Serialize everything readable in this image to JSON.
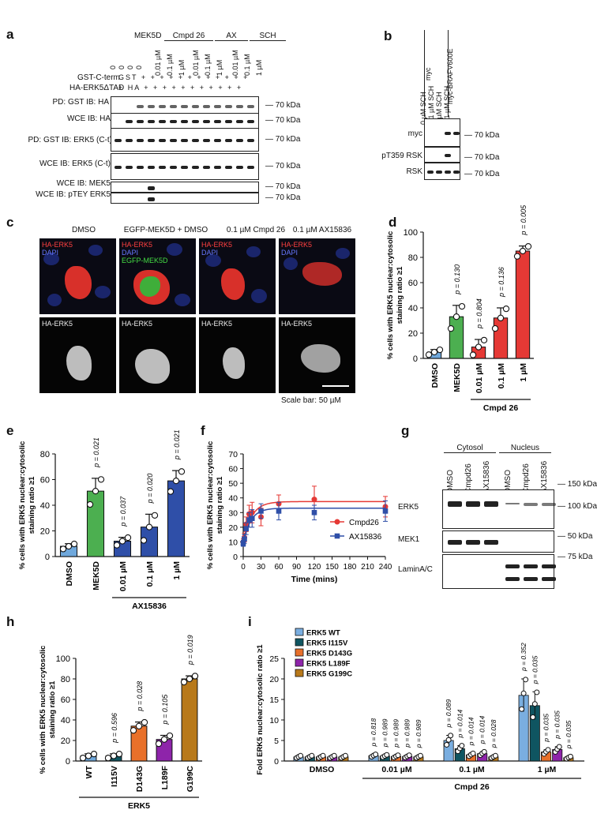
{
  "panel_labels": {
    "a": "a",
    "b": "b",
    "c": "c",
    "d": "d",
    "e": "e",
    "f": "f",
    "g": "g",
    "h": "h",
    "i": "i"
  },
  "panel_a": {
    "header_groups": [
      "MEK5D",
      "Cmpd 26",
      "AX",
      "SCH"
    ],
    "conc_labels": [
      "0",
      "0",
      "0",
      "0",
      "0.01 µM",
      "0.1 µM",
      "1 µM",
      "0.01 µM",
      "0.1 µM",
      "1 µM",
      "0.01 µM",
      "0.1 µM",
      "1 µM"
    ],
    "row_gst": "GST-C-term",
    "row_gst_vals": "GST + + + + + + + + + + + +",
    "row_ha": "HA-ERK5ΔTAD",
    "row_ha_vals": "+ HA + + + + + + + + + + +",
    "blots": [
      "PD: GST IB: HA",
      "WCE IB: HA",
      "PD: GST IB: ERK5 (C-t)",
      "WCE IB: ERK5 (C-t)",
      "WCE IB: MEK5",
      "WCE IB: pTEY ERK5"
    ],
    "kda": [
      "70 kDa",
      "70 kDa",
      "70 kDa",
      "70 kDa",
      "70 kDa",
      "70 kDa"
    ]
  },
  "panel_b": {
    "groups": [
      "myc",
      "myc-BRAFV600E"
    ],
    "conc": [
      "0 µM SCH",
      "0.1 µM SCH",
      "0 µM SCH",
      "0.1 µM SCH"
    ],
    "blots": [
      "myc",
      "pT359 RSK",
      "RSK"
    ],
    "kda": [
      "70 kDa",
      "70 kDa",
      "70 kDa"
    ]
  },
  "panel_c": {
    "columns": [
      "DMSO",
      "EGFP-MEK5D + DMSO",
      "0.1 µM Cmpd 26",
      "0.1 µM AX15836"
    ],
    "top_labels": [
      [
        "HA-ERK5",
        "DAPI"
      ],
      [
        "HA-ERK5",
        "DAPI",
        "EGFP-MEK5D"
      ],
      [
        "HA-ERK5",
        "DAPI"
      ],
      [
        "HA-ERK5",
        "DAPI"
      ]
    ],
    "bottom_label": "HA-ERK5",
    "scale_bar": "Scale bar: 50 µM"
  },
  "colors": {
    "dmso_blue": "#6fa8dc",
    "mek5d_green": "#4caf50",
    "cmpd_red": "#e53935",
    "ax_blue": "#2f4fa8",
    "orange": "#e8702a",
    "purple": "#8e24aa",
    "gold": "#b8791a",
    "teal": "#0f5561",
    "lightblue": "#7aaee0"
  },
  "chart_data": [
    {
      "id": "d",
      "type": "bar",
      "ylabel": "% cells with ERK5 nuclear:cytosolic staining ratio ≥1",
      "ylim": [
        0,
        100
      ],
      "yticks": [
        "0",
        "20",
        "40",
        "60",
        "80",
        "100"
      ],
      "categories": [
        "DMSO",
        "MEK5D",
        "0.01 µM",
        "0.1 µM",
        "1 µM"
      ],
      "values": [
        5,
        33,
        9,
        32,
        85
      ],
      "errors": [
        2,
        9,
        6,
        8,
        4
      ],
      "pvalues": [
        "",
        "p = 0.130",
        "p = 0.804",
        "p = 0.136",
        "p = 0.005"
      ],
      "group_label": "Cmpd 26"
    },
    {
      "id": "e",
      "type": "bar",
      "ylabel": "% cells with ERK5 nuclear:cytosolic staining ratio ≥1",
      "ylim": [
        0,
        80
      ],
      "yticks": [
        "0",
        "20",
        "40",
        "60",
        "80"
      ],
      "categories": [
        "DMSO",
        "MEK5D",
        "0.01 µM",
        "0.1 µM",
        "1 µM"
      ],
      "values": [
        8,
        51,
        12,
        23,
        59
      ],
      "errors": [
        2,
        10,
        3,
        10,
        8
      ],
      "pvalues": [
        "",
        "p = 0.021",
        "p = 0.037",
        "p = 0.020",
        "p = 0.021"
      ],
      "group_label": "AX15836"
    },
    {
      "id": "f",
      "type": "line",
      "ylabel": "% cells with ERK5 nuclear:cytosolic staining ratio ≥1",
      "xlabel": "Time (mins)",
      "xticks": [
        "0",
        "30",
        "60",
        "90",
        "120",
        "150",
        "180",
        "210",
        "240"
      ],
      "yticks": [
        "0",
        "10",
        "20",
        "30",
        "40",
        "50",
        "60",
        "70"
      ],
      "xlim": [
        0,
        240
      ],
      "ylim": [
        0,
        70
      ],
      "series": [
        {
          "name": "Cmpd26",
          "x": [
            0,
            2,
            5,
            10,
            15,
            30,
            60,
            120,
            240
          ],
          "y": [
            10,
            13,
            22,
            29,
            30,
            27,
            36,
            39,
            34
          ],
          "err": [
            2,
            3,
            5,
            6,
            7,
            6,
            6,
            9,
            7
          ]
        },
        {
          "name": "AX15836",
          "x": [
            0,
            2,
            5,
            10,
            15,
            30,
            60,
            120,
            240
          ],
          "y": [
            9,
            12,
            19,
            25,
            26,
            31,
            31,
            30,
            31
          ],
          "err": [
            2,
            3,
            4,
            5,
            6,
            5,
            6,
            5,
            7
          ]
        }
      ]
    },
    {
      "id": "h",
      "type": "bar",
      "ylabel": "% cells with ERK5 nuclear:cytosolic staining ratio ≥1",
      "ylim": [
        0,
        100
      ],
      "yticks": [
        "0",
        "20",
        "40",
        "60",
        "80",
        "100"
      ],
      "categories": [
        "WT",
        "I115V",
        "D143G",
        "L189F",
        "G199C"
      ],
      "values": [
        5,
        5,
        34,
        21,
        80
      ],
      "errors": [
        2,
        2,
        4,
        4,
        3
      ],
      "pvalues": [
        "",
        "p = 0.596",
        "p = 0.028",
        "p = 0.105",
        "p = 0.019"
      ],
      "group_label": "ERK5"
    },
    {
      "id": "i",
      "type": "bar",
      "ylabel": "Fold ERK5 nuclear:cytosolic ratio ≥1",
      "ylim": [
        0,
        25
      ],
      "yticks": [
        "0",
        "5",
        "10",
        "15",
        "20",
        "25"
      ],
      "categories": [
        "DMSO",
        "0.01 µM",
        "0.1 µM",
        "1 µM"
      ],
      "group_label": "Cmpd 26",
      "series": [
        {
          "name": "ERK5 WT",
          "values": [
            1,
            1.3,
            5,
            16
          ],
          "pvalues": [
            "",
            "p = 0.818",
            "p = 0.089",
            "p = 0.352"
          ]
        },
        {
          "name": "ERK5 I115V",
          "values": [
            1,
            1.2,
            3,
            13.5
          ],
          "pvalues": [
            "",
            "p = 0.989",
            "p = 0.014",
            "p = 0.035"
          ]
        },
        {
          "name": "ERK5 D143G",
          "values": [
            1,
            1.1,
            1.5,
            2.2
          ],
          "pvalues": [
            "",
            "p = 0.989",
            "p = 0.014",
            "p = 0.035"
          ]
        },
        {
          "name": "ERK5 L189F",
          "values": [
            1,
            1.1,
            1.8,
            2.8
          ],
          "pvalues": [
            "",
            "p = 0.989",
            "p = 0.014",
            "p = 0.035"
          ]
        },
        {
          "name": "ERK5 G199C",
          "values": [
            1,
            1,
            1,
            0.8
          ],
          "pvalues": [
            "",
            "p = 0.989",
            "p = 0.028",
            "p = 0.035"
          ]
        }
      ]
    }
  ],
  "panel_g": {
    "groups": [
      "Cytosol",
      "Nucleus"
    ],
    "lanes": [
      "DMSO",
      "Cmpd26",
      "AX15836",
      "DMSO",
      "Cmpd26",
      "AX15836"
    ],
    "blots": [
      "ERK5",
      "MEK1",
      "LaminA/C"
    ],
    "kda": [
      "150 kDa",
      "100 kDa",
      "50 kDa",
      "75 kDa"
    ]
  }
}
